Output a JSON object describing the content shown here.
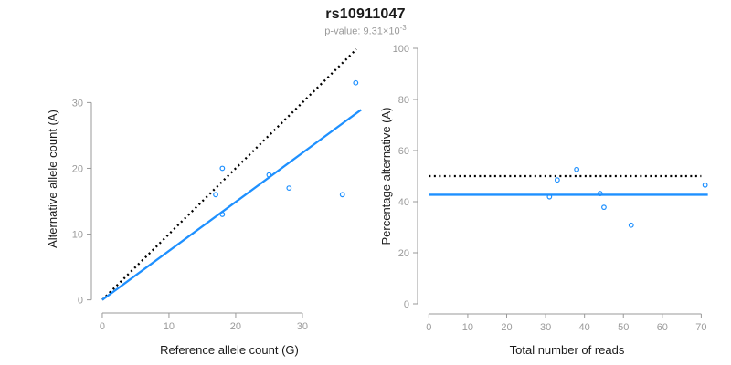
{
  "header": {
    "title": "rs10911047",
    "subtitle_base": "p-value: 9.31×10",
    "subtitle_exponent": "-3"
  },
  "colors": {
    "accent_blue": "#1E90FF",
    "axis_gray": "#999999",
    "tick_label_gray": "#9a9a9a",
    "text_dark": "#1a1a1a",
    "dotted_black": "#000000"
  },
  "chart_data": [
    {
      "type": "scatter",
      "panel": "left",
      "xlabel": "Reference allele count (G)",
      "ylabel": "Alternative allele count (A)",
      "xticks": [
        0,
        10,
        20,
        30
      ],
      "yticks": [
        0,
        10,
        20,
        30
      ],
      "xlim": [
        -1.5,
        39.6
      ],
      "ylim": [
        -1.3,
        38.1
      ],
      "grid": false,
      "points": [
        [
          17,
          16
        ],
        [
          18,
          20
        ],
        [
          18,
          13
        ],
        [
          25,
          19
        ],
        [
          28,
          17
        ],
        [
          36,
          16
        ],
        [
          38,
          33
        ]
      ],
      "lines": [
        {
          "name": "expected-50pct-identity-line",
          "style": "dotted",
          "color": "black",
          "from": [
            0,
            0
          ],
          "to": [
            38.1,
            38.1
          ]
        },
        {
          "name": "fitted-ratio-line",
          "style": "solid",
          "color": "blue",
          "from": [
            0,
            0
          ],
          "to": [
            38.8,
            28.9
          ]
        }
      ]
    },
    {
      "type": "scatter",
      "panel": "right",
      "xlabel": "Total number of reads",
      "ylabel": "Percentage alternative (A)",
      "xticks": [
        0,
        10,
        20,
        30,
        40,
        50,
        60,
        70
      ],
      "yticks": [
        0,
        20,
        40,
        60,
        80,
        100
      ],
      "xlim": [
        -2.9,
        73.9
      ],
      "ylim": [
        0,
        100
      ],
      "grid": false,
      "points": [
        [
          33,
          48.5
        ],
        [
          38,
          52.6
        ],
        [
          31,
          41.9
        ],
        [
          44,
          43.2
        ],
        [
          45,
          37.8
        ],
        [
          52,
          30.8
        ],
        [
          71,
          46.5
        ]
      ],
      "lines": [
        {
          "name": "expected-50pct-line",
          "style": "dotted",
          "color": "black",
          "from": [
            0,
            50
          ],
          "to": [
            70,
            50
          ]
        },
        {
          "name": "mean-percentage-line",
          "style": "solid",
          "color": "blue",
          "from": [
            0,
            42.7
          ],
          "to": [
            71.7,
            42.7
          ]
        }
      ]
    }
  ]
}
